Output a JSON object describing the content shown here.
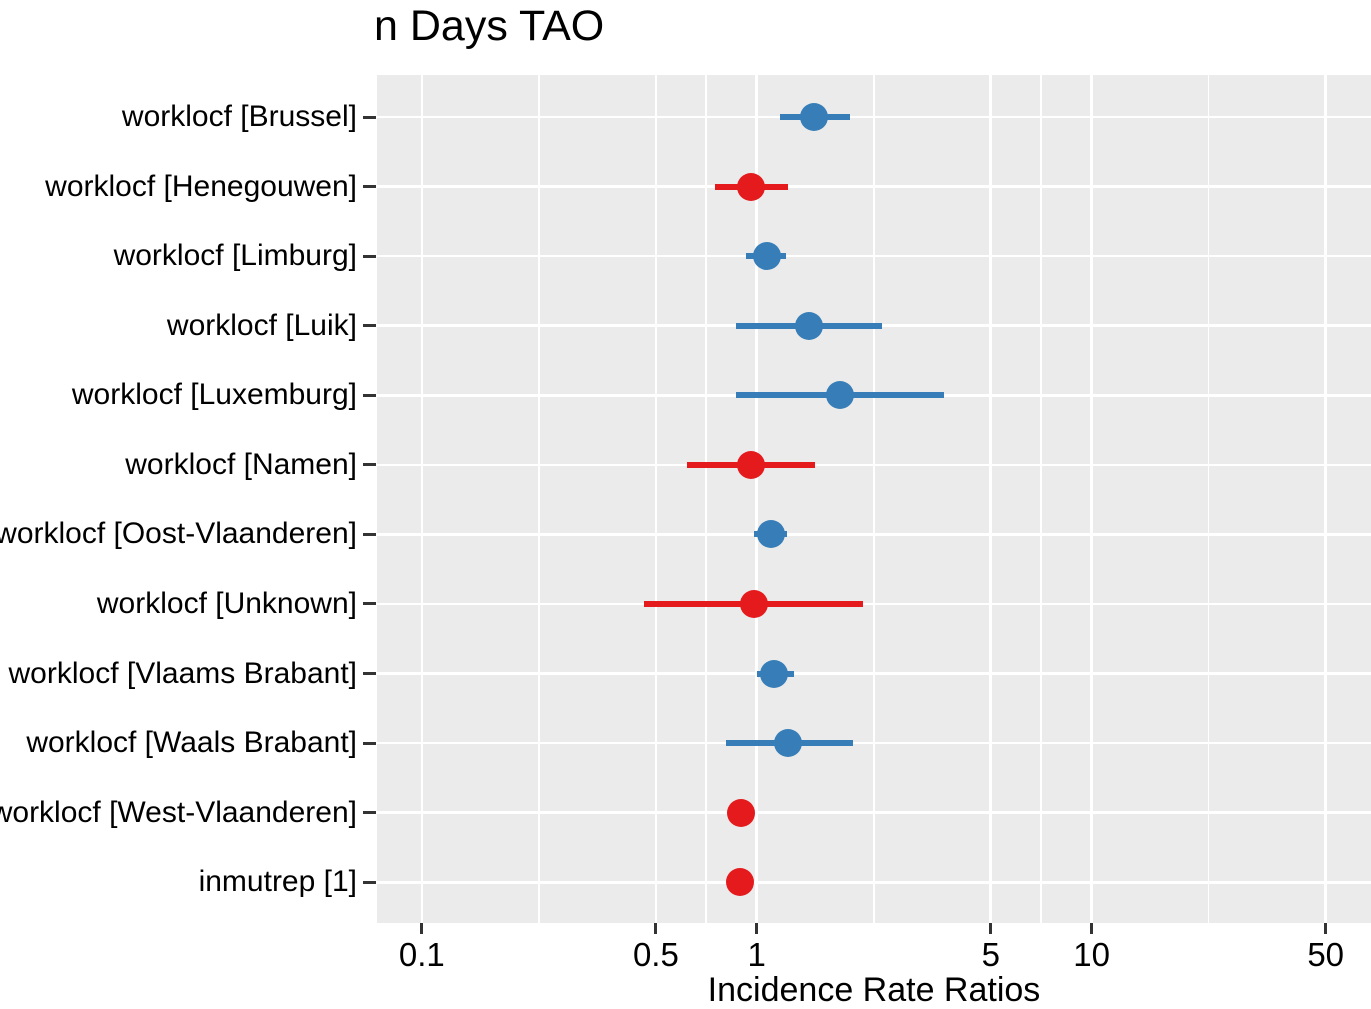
{
  "title": "n Days TAO",
  "x_axis": {
    "label": "Incidence Rate Ratios",
    "scale": "log10",
    "tick_labels": [
      "0.1",
      "0.5",
      "1",
      "5",
      "10",
      "50"
    ],
    "tick_values": [
      0.1,
      0.5,
      1,
      5,
      10,
      50
    ],
    "minor_tick_values": [
      0.2236,
      0.7071,
      2.2361,
      7.0711,
      22.3607
    ],
    "range": [
      0.0735,
      68
    ]
  },
  "colors": {
    "irr_above_1": "#377EB8",
    "irr_below_1": "#E41A1C",
    "panel_background": "#EBEBEB",
    "gridline": "#FFFFFF",
    "axis_tick": "#333333",
    "text": "#000000"
  },
  "chart_data": {
    "type": "scatter",
    "variant": "forest-plot",
    "title": "n Days TAO",
    "xlabel": "Incidence Rate Ratios",
    "ylabel": "",
    "x_scale": "log10",
    "x_ticks": [
      0.1,
      0.5,
      1,
      5,
      10,
      50
    ],
    "x_minor_ticks": [
      0.2236,
      0.7071,
      2.2361,
      7.0711,
      22.3607
    ],
    "x_range": [
      0.0735,
      68
    ],
    "grid": true,
    "legend": false,
    "color_rule": "point colored #377EB8 when IRR > 1, #E41A1C when IRR < 1",
    "note": "CI for last two rows is narrower than the marker (no visible whiskers); values estimated from pixel positions on the log axis",
    "categories": [
      "worklocf [Brussel]",
      "worklocf [Henegouwen]",
      "worklocf [Limburg]",
      "worklocf [Luik]",
      "worklocf [Luxemburg]",
      "worklocf [Namen]",
      "worklocf [Oost-Vlaanderen]",
      "worklocf [Unknown]",
      "worklocf [Vlaams Brabant]",
      "worklocf [Waals Brabant]",
      "worklocf [West-Vlaanderen]",
      "inmutrep [1]"
    ],
    "rows": [
      {
        "label": "worklocf [Brussel]",
        "irr": 1.48,
        "ci_low": 1.17,
        "ci_high": 1.9
      },
      {
        "label": "worklocf [Henegouwen]",
        "irr": 0.96,
        "ci_low": 0.75,
        "ci_high": 1.24
      },
      {
        "label": "worklocf [Limburg]",
        "irr": 1.07,
        "ci_low": 0.93,
        "ci_high": 1.22
      },
      {
        "label": "worklocf [Luik]",
        "irr": 1.43,
        "ci_low": 0.87,
        "ci_high": 2.36
      },
      {
        "label": "worklocf [Luxemburg]",
        "irr": 1.77,
        "ci_low": 0.87,
        "ci_high": 3.63
      },
      {
        "label": "worklocf [Namen]",
        "irr": 0.96,
        "ci_low": 0.62,
        "ci_high": 1.49
      },
      {
        "label": "worklocf [Oost-Vlaanderen]",
        "irr": 1.1,
        "ci_low": 0.98,
        "ci_high": 1.23
      },
      {
        "label": "worklocf [Unknown]",
        "irr": 0.98,
        "ci_low": 0.46,
        "ci_high": 2.08
      },
      {
        "label": "worklocf [Vlaams Brabant]",
        "irr": 1.13,
        "ci_low": 1.0,
        "ci_high": 1.29
      },
      {
        "label": "worklocf [Waals Brabant]",
        "irr": 1.24,
        "ci_low": 0.81,
        "ci_high": 1.94
      },
      {
        "label": "worklocf [West-Vlaanderen]",
        "irr": 0.9,
        "ci_low": 0.86,
        "ci_high": 0.95
      },
      {
        "label": "inmutrep [1]",
        "irr": 0.89,
        "ci_low": 0.85,
        "ci_high": 0.93
      }
    ]
  }
}
